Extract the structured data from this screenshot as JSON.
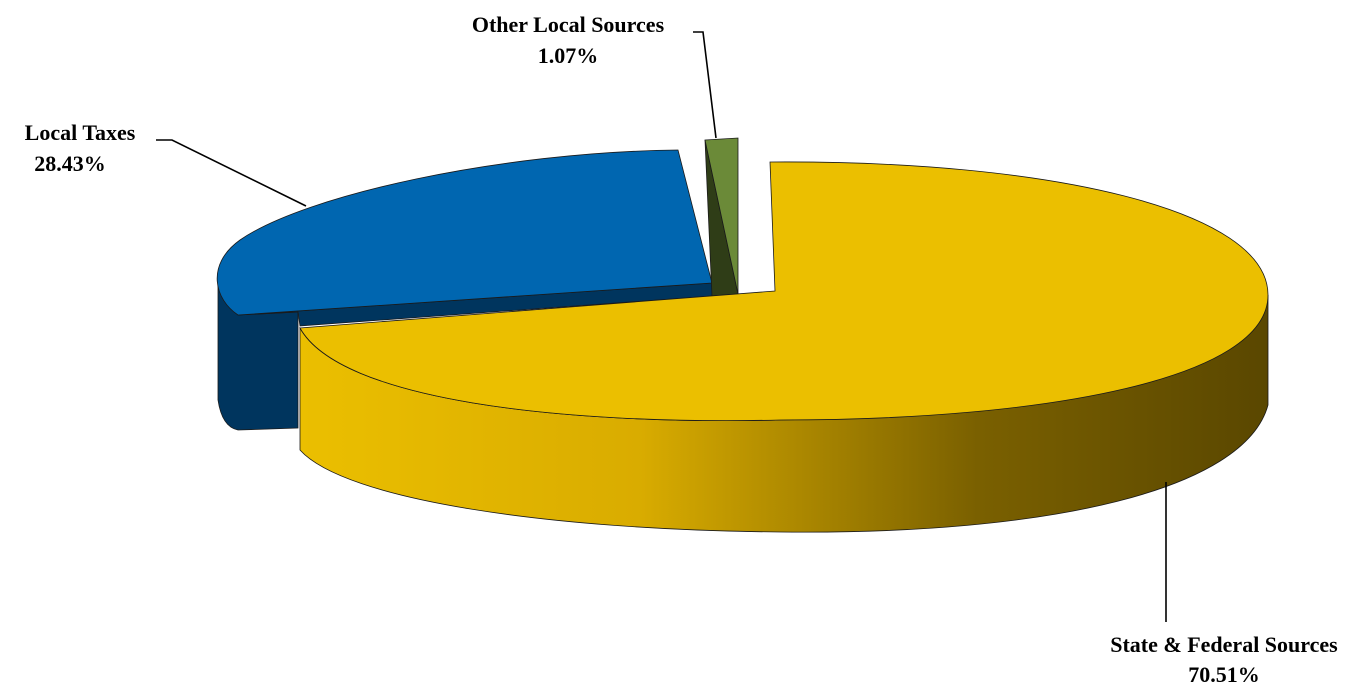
{
  "chart_data": {
    "type": "pie",
    "style": "3d-exploded",
    "title": "",
    "slices": [
      {
        "label": "State & Federal Sources",
        "value_label": "70.51%",
        "value": 70.51,
        "color": "#ebbf00",
        "side_color": "#5e4a00"
      },
      {
        "label": "Local Taxes",
        "value_label": "28.43%",
        "value": 28.43,
        "color": "#0066b0",
        "side_color": "#00355e"
      },
      {
        "label": "Other Local Sources",
        "value_label": "1.07%",
        "value": 1.07,
        "color": "#6b8a38",
        "side_color": "#2f3d17"
      }
    ]
  }
}
